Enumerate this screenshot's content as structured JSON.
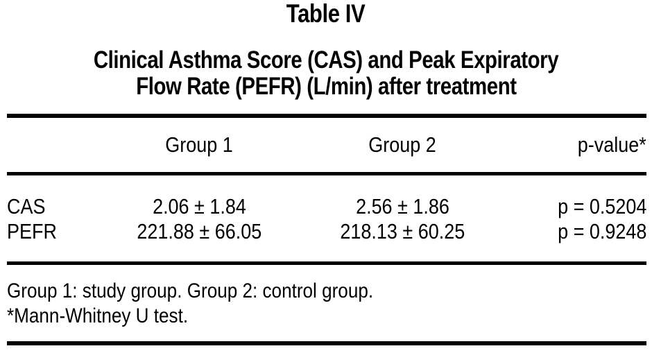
{
  "figure": {
    "title": "Table IV",
    "caption_lines": [
      "Clinical Asthma Score (CAS) and Peak Expiratory",
      "Flow Rate (PEFR) (L/min) after treatment"
    ],
    "columns": [
      "",
      "Group 1",
      "Group 2",
      "p-value*"
    ],
    "rows": [
      {
        "label": "CAS",
        "group1": "2.06 ± 1.84",
        "group2": "2.56 ± 1.86",
        "p_value": "p = 0.5204"
      },
      {
        "label": "PEFR",
        "group1": "221.88 ± 66.05",
        "group2": "218.13 ± 60.25",
        "p_value": "p = 0.9248"
      }
    ],
    "footnotes": [
      "Group 1: study group. Group 2: control group.",
      "*Mann-Whitney U test."
    ],
    "colors": {
      "text": "#000000",
      "background": "#ffffff",
      "rules": "#000000"
    }
  }
}
